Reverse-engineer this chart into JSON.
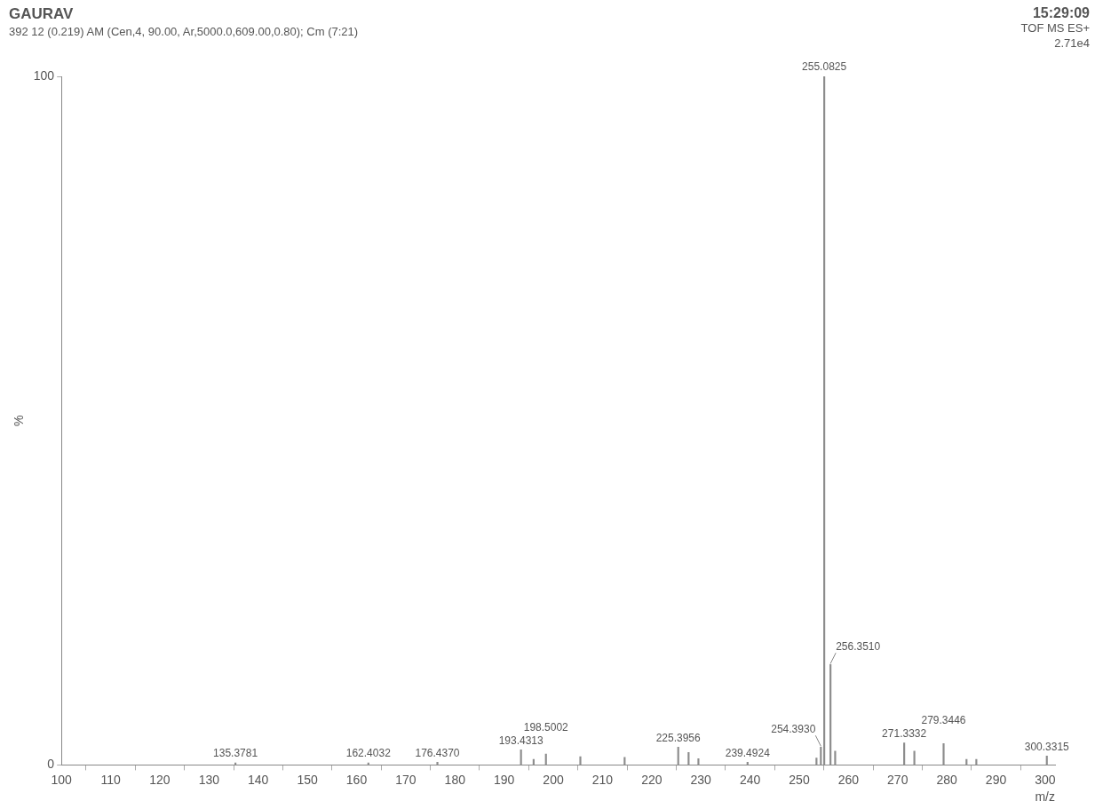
{
  "chart_data": {
    "type": "bar",
    "title": "GAURAV",
    "subtitle": "392 12 (0.219) AM (Cen,4, 90.00, Ar,5000.0,609.00,0.80); Cm (7:21)",
    "xlabel": "m/z",
    "ylabel": "%",
    "annotations": [
      "15:29:09",
      "TOF MS ES+",
      "2.71e4",
      {
        "text": "135.3781",
        "x": 135.3781,
        "y": 0.3
      },
      {
        "text": "162.4032",
        "x": 162.4032,
        "y": 0.3
      },
      {
        "text": "176.4370",
        "x": 176.437,
        "y": 0.4
      },
      {
        "text": "193.4313",
        "x": 193.4313,
        "y": 2.2
      },
      {
        "text": "198.5002",
        "x": 198.5002,
        "y": 1.6
      },
      {
        "text": "225.3956",
        "x": 225.3956,
        "y": 2.6
      },
      {
        "text": "239.4924",
        "x": 239.4924,
        "y": 0.4
      },
      {
        "text": "254.3930",
        "x": 254.393,
        "y": 2.6
      },
      {
        "text": "255.0825",
        "x": 255.0825,
        "y": 100
      },
      {
        "text": "256.3510",
        "x": 256.351,
        "y": 14.6
      },
      {
        "text": "271.3332",
        "x": 271.3332,
        "y": 3.2
      },
      {
        "text": "279.3446",
        "x": 279.3446,
        "y": 3.1
      },
      {
        "text": "300.3315",
        "x": 300.3315,
        "y": 1.3
      }
    ],
    "x": [
      135.3781,
      162.4032,
      176.437,
      193.4313,
      196,
      198.5002,
      205.5,
      214.5,
      225.3956,
      227.5,
      229.5,
      239.4924,
      253.5,
      254.393,
      255.0825,
      256.351,
      257.3,
      271.3332,
      273.4,
      279.3446,
      284,
      286,
      300.3315
    ],
    "values": [
      0.3,
      0.3,
      0.4,
      2.2,
      0.8,
      1.6,
      1.2,
      1.1,
      2.6,
      1.8,
      0.9,
      0.4,
      1.0,
      2.6,
      100,
      14.6,
      2.0,
      3.2,
      2.0,
      3.1,
      0.8,
      0.8,
      1.3
    ],
    "color": "#8c8c8c",
    "xlim": [
      100,
      302
    ],
    "xticks": [
      100,
      110,
      120,
      130,
      140,
      150,
      160,
      170,
      180,
      190,
      200,
      210,
      220,
      230,
      240,
      250,
      260,
      270,
      280,
      290,
      300
    ],
    "ylim": [
      0,
      100
    ],
    "yticks": [
      0,
      100
    ],
    "grid": false,
    "legend": false
  }
}
